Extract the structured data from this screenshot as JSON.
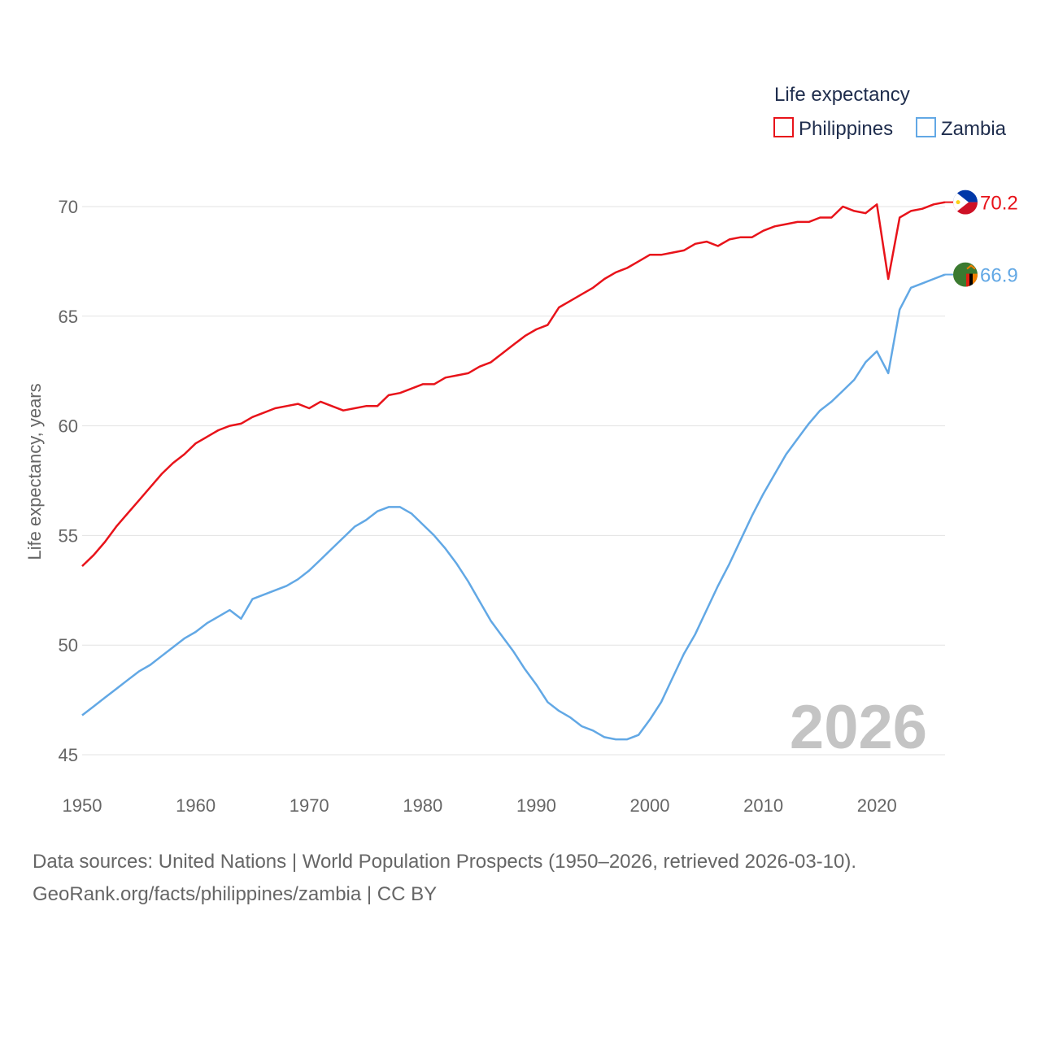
{
  "chart_data": {
    "type": "line",
    "title": "",
    "legend_title": "Life expectancy",
    "ylabel": "Life expectancy, years",
    "xlabel": "",
    "ylim": [
      45,
      70
    ],
    "xlim": [
      1950,
      2026
    ],
    "yticks": [
      "45",
      "50",
      "55",
      "60",
      "65",
      "70"
    ],
    "xticks": [
      "1950",
      "1960",
      "1970",
      "1980",
      "1990",
      "2000",
      "2010",
      "2020"
    ],
    "year_label": "2026",
    "x_start": 1950,
    "series": [
      {
        "name": "Philippines",
        "color": "#e8131a",
        "end_label": "70.2",
        "flag_icon": "philippines-flag-icon",
        "values": [
          53.6,
          54.1,
          54.7,
          55.4,
          56.0,
          56.6,
          57.2,
          57.8,
          58.3,
          58.7,
          59.2,
          59.5,
          59.8,
          60.0,
          60.1,
          60.4,
          60.6,
          60.8,
          60.9,
          61.0,
          60.8,
          61.1,
          60.9,
          60.7,
          60.8,
          60.9,
          60.9,
          61.4,
          61.5,
          61.7,
          61.9,
          61.9,
          62.2,
          62.3,
          62.4,
          62.7,
          62.9,
          63.3,
          63.7,
          64.1,
          64.4,
          64.6,
          65.4,
          65.7,
          66.0,
          66.3,
          66.7,
          67.0,
          67.2,
          67.5,
          67.8,
          67.8,
          67.9,
          68.0,
          68.3,
          68.4,
          68.2,
          68.5,
          68.6,
          68.6,
          68.9,
          69.1,
          69.2,
          69.3,
          69.3,
          69.5,
          69.5,
          70.0,
          69.8,
          69.7,
          70.1,
          66.7,
          69.5,
          69.8,
          69.9,
          70.1,
          70.2
        ]
      },
      {
        "name": "Zambia",
        "color": "#62a8e5",
        "end_label": "66.9",
        "flag_icon": "zambia-flag-icon",
        "values": [
          46.8,
          47.2,
          47.6,
          48.0,
          48.4,
          48.8,
          49.1,
          49.5,
          49.9,
          50.3,
          50.6,
          51.0,
          51.3,
          51.6,
          51.2,
          52.1,
          52.3,
          52.5,
          52.7,
          53.0,
          53.4,
          53.9,
          54.4,
          54.9,
          55.4,
          55.7,
          56.1,
          56.3,
          56.3,
          56.0,
          55.5,
          55.0,
          54.4,
          53.7,
          52.9,
          52.0,
          51.1,
          50.4,
          49.7,
          48.9,
          48.2,
          47.4,
          47.0,
          46.7,
          46.3,
          46.1,
          45.8,
          45.7,
          45.7,
          45.9,
          46.6,
          47.4,
          48.5,
          49.6,
          50.5,
          51.6,
          52.7,
          53.7,
          54.8,
          55.9,
          56.9,
          57.8,
          58.7,
          59.4,
          60.1,
          60.7,
          61.1,
          61.6,
          62.1,
          62.9,
          63.4,
          62.4,
          65.3,
          66.3,
          66.5,
          66.7,
          66.9
        ]
      }
    ]
  },
  "footer": {
    "source_line": "Data sources: United Nations | World Population Prospects (1950–2026, retrieved 2026-03-10).",
    "attribution_line": "GeoRank.org/facts/philippines/zambia | CC BY"
  }
}
